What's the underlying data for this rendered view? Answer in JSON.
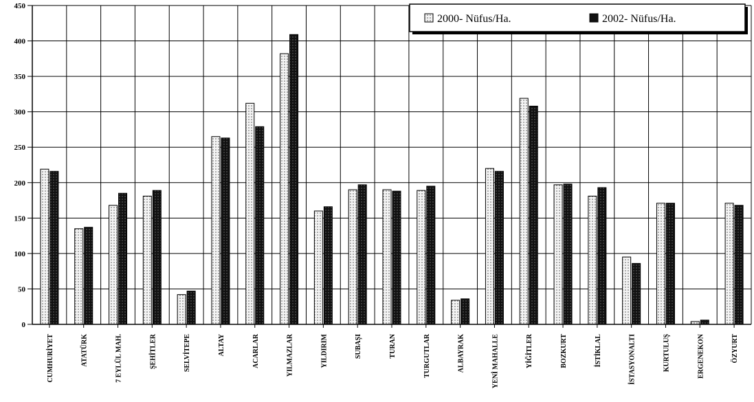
{
  "chart_data": {
    "type": "bar",
    "title": "",
    "xlabel": "",
    "ylabel": "",
    "ylim": [
      0,
      450
    ],
    "yticks": [
      0,
      50,
      100,
      150,
      200,
      250,
      300,
      350,
      400,
      450
    ],
    "grid": true,
    "legend_position": "top-right",
    "categories": [
      "CUMHURİYET",
      "ATATÜRK",
      "7 EYLÜL MAH.",
      "ŞEHİTLER",
      "SELVİTEPE",
      "ALTAY",
      "ACARLAR",
      "YILMAZLAR",
      "YILDIRIM",
      "SUBAŞI",
      "TURAN",
      "TURGUTLAR",
      "ALBAYRAK",
      "YENİ MAHALLE",
      "YİĞİTLER",
      "BOZKURT",
      "İSTİKLAL",
      "İSTASYONALTI",
      "KURTULUŞ",
      "ERGENEKON",
      "ÖZYURT"
    ],
    "series": [
      {
        "name": "2000- Nüfus/Ha.",
        "color": "#e8e8e8",
        "values": [
          219,
          135,
          168,
          181,
          42,
          265,
          312,
          382,
          160,
          190,
          190,
          189,
          34,
          220,
          319,
          197,
          181,
          95,
          171,
          4,
          171
        ]
      },
      {
        "name": "2002- Nüfus/Ha.",
        "color": "#1a1a1a",
        "values": [
          216,
          137,
          185,
          189,
          47,
          263,
          279,
          409,
          166,
          197,
          188,
          195,
          36,
          216,
          308,
          198,
          193,
          86,
          171,
          6,
          168
        ]
      }
    ]
  }
}
